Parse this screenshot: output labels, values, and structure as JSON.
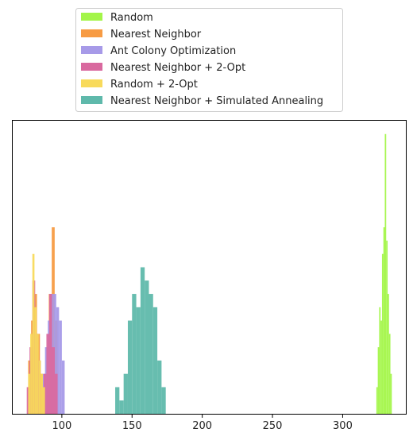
{
  "chart_data": {
    "type": "histogram",
    "title": "",
    "xlabel": "",
    "ylabel": "",
    "xlim": [
      65,
      345
    ],
    "ylim": [
      0,
      22
    ],
    "x_ticks": [
      100,
      150,
      200,
      250,
      300
    ],
    "y_ticks": [],
    "grid": false,
    "legend_position": "above-center",
    "series": [
      {
        "name": "Random",
        "color": "#a3f549",
        "bin_edges": [
          324.0,
          325.0,
          326.0,
          327.0,
          328.0,
          329.0,
          330.0,
          331.0,
          332.0,
          333.0,
          334.0,
          335.0
        ],
        "counts": [
          2,
          5,
          8,
          7,
          12,
          14,
          21,
          13,
          9,
          6,
          3
        ]
      },
      {
        "name": "Nearest Neighbor",
        "color": "#f79b43",
        "bin_edges": [
          76.0,
          78.1,
          80.2,
          82.3,
          84.4,
          86.5,
          88.6,
          90.7,
          92.8,
          94.9,
          97.0
        ],
        "counts": [
          4,
          7,
          9,
          6,
          3,
          2,
          4,
          9,
          14,
          7
        ]
      },
      {
        "name": "Ant Colony Optimization",
        "color": "#a79ae8",
        "bin_edges": [
          86.0,
          88.0,
          90.0,
          92.0,
          94.0,
          96.0,
          98.0,
          100.0,
          102.0
        ],
        "counts": [
          3,
          5,
          7,
          9,
          9,
          8,
          7,
          4
        ]
      },
      {
        "name": "Nearest Neighbor + 2-Opt",
        "color": "#d9699f",
        "bin_edges": [
          75.0,
          77.0,
          79.0,
          81.0,
          83.0,
          85.0,
          87.0,
          89.0,
          91.0,
          93.0,
          95.0,
          97.0
        ],
        "counts": [
          2,
          5,
          10,
          6,
          4,
          2,
          3,
          6,
          9,
          5,
          3
        ]
      },
      {
        "name": "Random + 2-Opt",
        "color": "#f8da5b",
        "bin_edges": [
          76.0,
          77.5,
          79.0,
          80.5,
          82.0,
          83.5,
          85.0,
          86.5,
          88.0
        ],
        "counts": [
          3,
          6,
          12,
          8,
          6,
          4,
          3,
          2
        ]
      },
      {
        "name": "Nearest Neighbor + Simulated Annealing",
        "color": "#5fb9ab",
        "bin_edges": [
          138.0,
          141.0,
          144.0,
          147.0,
          150.0,
          153.0,
          156.0,
          159.0,
          162.0,
          165.0,
          168.0,
          171.0,
          174.0
        ],
        "counts": [
          2,
          1,
          3,
          7,
          9,
          8,
          11,
          10,
          9,
          8,
          4,
          2
        ]
      }
    ]
  }
}
